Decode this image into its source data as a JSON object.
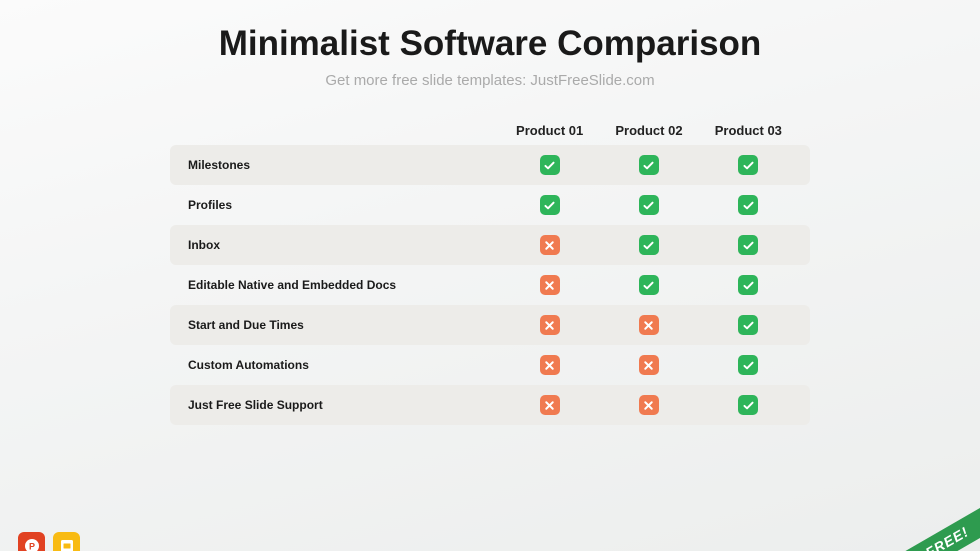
{
  "title": "Minimalist Software Comparison",
  "subtitle": "Get more free slide templates: JustFreeSlide.com",
  "colors": {
    "check_bg": "#2eb55a",
    "cross_bg": "#f07a50",
    "icon_fg": "#ffffff",
    "row_shade": "#edece9",
    "title_color": "#1a1a1a",
    "subtitle_color": "#aaaaaa",
    "ribbon_bg": "#2e9b4f",
    "powerpoint_bg": "#e14222",
    "slides_bg": "#f8bb13"
  },
  "products": [
    "Product 01",
    "Product 02",
    "Product 03"
  ],
  "features": [
    {
      "label": "Milestones",
      "shaded": true,
      "values": [
        "check",
        "check",
        "check"
      ]
    },
    {
      "label": "Profiles",
      "shaded": false,
      "values": [
        "check",
        "check",
        "check"
      ]
    },
    {
      "label": "Inbox",
      "shaded": true,
      "values": [
        "cross",
        "check",
        "check"
      ]
    },
    {
      "label": "Editable Native and Embedded Docs",
      "shaded": false,
      "values": [
        "cross",
        "check",
        "check"
      ]
    },
    {
      "label": "Start and Due Times",
      "shaded": true,
      "values": [
        "cross",
        "cross",
        "check"
      ]
    },
    {
      "label": "Custom Automations",
      "shaded": false,
      "values": [
        "cross",
        "cross",
        "check"
      ]
    },
    {
      "label": "Just Free Slide Support",
      "shaded": true,
      "values": [
        "cross",
        "cross",
        "check"
      ]
    }
  ],
  "ribbon": "FREE!",
  "app_icons": {
    "powerpoint": "P",
    "slides": "slides-icon"
  }
}
